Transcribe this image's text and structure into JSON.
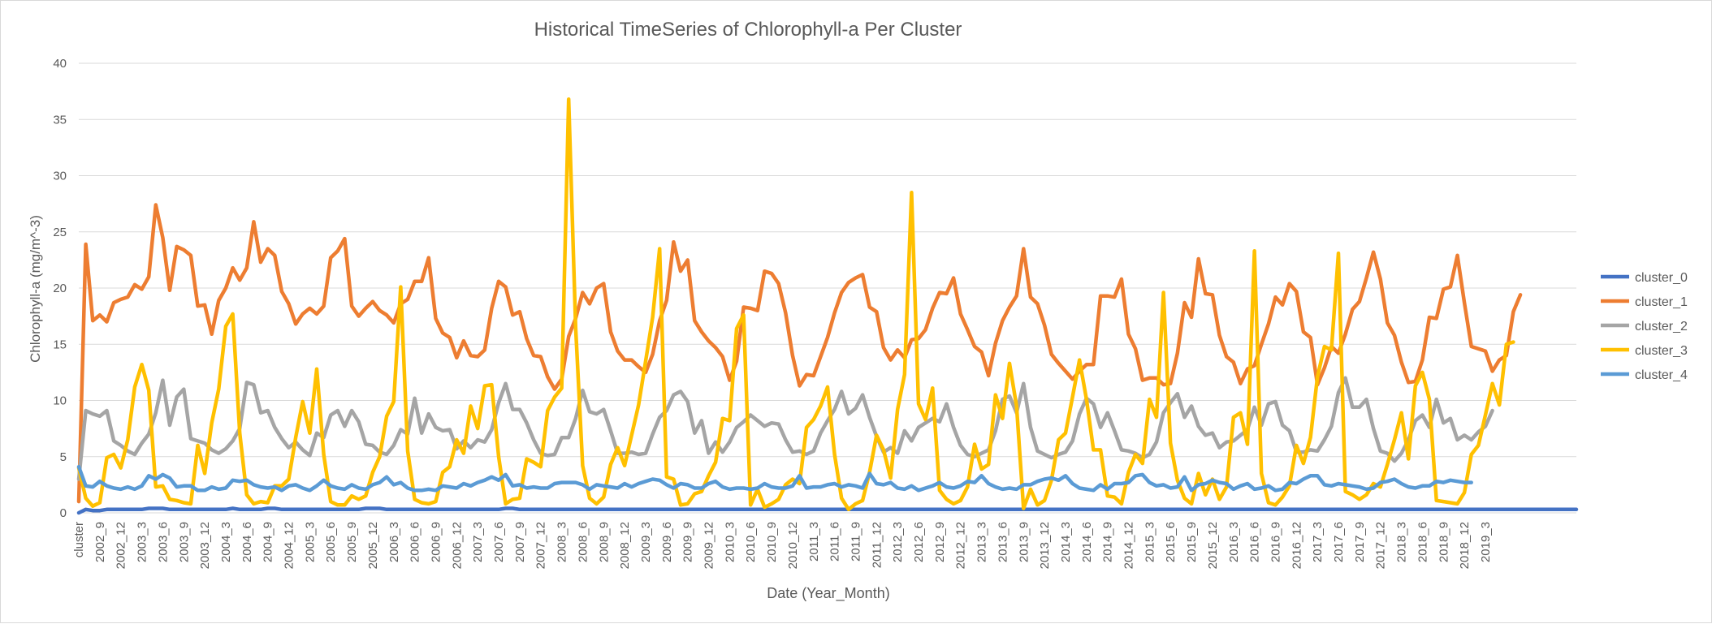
{
  "chart_data": {
    "type": "line",
    "title": "Historical TimeSeries of Chlorophyll-a Per Cluster",
    "xlabel": "Date (Year_Month)",
    "ylabel": "Chlorophyll-a (mg/m^-3)",
    "ylim": [
      0,
      40
    ],
    "yticks": [
      0,
      5,
      10,
      15,
      20,
      25,
      30,
      35,
      40
    ],
    "grid": "horizontal",
    "legend_position": "right",
    "x_tick_labels": [
      "cluster",
      "2002_9",
      "2002_12",
      "2003_3",
      "2003_6",
      "2003_9",
      "2003_12",
      "2004_3",
      "2004_6",
      "2004_9",
      "2004_12",
      "2005_3",
      "2005_6",
      "2005_9",
      "2005_12",
      "2006_3",
      "2006_6",
      "2006_9",
      "2006_12",
      "2007_3",
      "2007_6",
      "2007_9",
      "2007_12",
      "2008_3",
      "2008_6",
      "2008_9",
      "2008_12",
      "2009_3",
      "2009_6",
      "2009_9",
      "2009_12",
      "2010_3",
      "2010_6",
      "2010_9",
      "2010_12",
      "2011_3",
      "2011_6",
      "2011_9",
      "2011_12",
      "2012_3",
      "2012_6",
      "2012_9",
      "2012_12",
      "2013_3",
      "2013_6",
      "2013_9",
      "2013_12",
      "2014_3",
      "2014_6",
      "2014_9",
      "2014_12",
      "2015_3",
      "2015_6",
      "2015_9",
      "2015_12",
      "2016_3",
      "2016_6",
      "2016_9",
      "2016_12",
      "2017_3",
      "2017_6",
      "2017_9",
      "2017_12",
      "2018_3",
      "2018_6",
      "2018_9",
      "2018_12",
      "2019_3"
    ],
    "x_note": "Points are monthly from 2002_7 to 2019_5, preceded by a 'cluster' index point.",
    "series": [
      {
        "name": "cluster_0",
        "color": "#4472c4",
        "values": [
          0,
          0.3,
          0.2,
          0.2,
          0.3,
          0.3,
          0.3,
          0.3,
          0.3,
          0.3,
          0.4,
          0.4,
          0.4,
          0.3,
          0.3,
          0.3,
          0.3,
          0.3,
          0.3,
          0.3,
          0.3,
          0.3,
          0.4,
          0.3,
          0.3,
          0.3,
          0.3,
          0.4,
          0.4,
          0.3,
          0.3,
          0.3,
          0.3,
          0.3,
          0.3,
          0.3,
          0.3,
          0.3,
          0.3,
          0.3,
          0.3,
          0.4,
          0.4,
          0.4,
          0.3,
          0.3,
          0.3,
          0.3,
          0.3,
          0.3,
          0.3,
          0.3,
          0.3,
          0.3,
          0.3,
          0.3,
          0.3,
          0.3,
          0.3,
          0.3,
          0.3,
          0.4,
          0.4,
          0.3,
          0.3,
          0.3,
          0.3,
          0.3,
          0.3,
          0.3,
          0.3,
          0.3,
          0.3,
          0.3,
          0.3,
          0.3,
          0.3,
          0.3,
          0.3,
          0.3,
          0.3,
          0.3,
          0.3,
          0.3,
          0.3,
          0.3,
          0.3,
          0.3,
          0.3,
          0.3,
          0.3,
          0.3,
          0.3,
          0.3,
          0.3,
          0.3,
          0.3,
          0.3,
          0.3,
          0.3,
          0.3,
          0.3,
          0.3,
          0.3,
          0.3,
          0.3,
          0.3,
          0.3,
          0.3,
          0.3,
          0.3,
          0.3,
          0.3,
          0.3,
          0.3,
          0.3,
          0.3,
          0.3,
          0.3,
          0.3,
          0.3,
          0.3,
          0.3,
          0.3,
          0.3,
          0.3,
          0.3,
          0.3,
          0.3,
          0.3,
          0.3,
          0.3,
          0.3,
          0.3,
          0.3,
          0.3,
          0.3,
          0.3,
          0.3,
          0.3,
          0.3,
          0.3,
          0.3,
          0.3,
          0.3,
          0.3,
          0.3,
          0.3,
          0.3,
          0.3,
          0.3,
          0.3,
          0.3,
          0.3,
          0.3,
          0.3,
          0.3,
          0.3,
          0.3,
          0.3,
          0.3,
          0.3,
          0.3,
          0.3,
          0.3,
          0.3,
          0.3,
          0.3,
          0.3,
          0.3,
          0.3,
          0.3,
          0.3,
          0.3,
          0.3,
          0.3,
          0.3,
          0.3,
          0.3,
          0.3,
          0.3,
          0.3,
          0.3,
          0.3,
          0.3,
          0.3,
          0.3,
          0.3,
          0.3,
          0.3,
          0.3,
          0.3,
          0.3,
          0.3,
          0.3,
          0.3,
          0.3,
          0.3,
          0.3,
          0.3,
          0.3,
          0.3,
          0.3,
          0.3,
          0.3,
          0.3,
          0.3,
          0.3,
          0.3,
          0.3,
          0.3,
          0.3,
          0.3,
          0.3,
          0.3
        ]
      },
      {
        "name": "cluster_1",
        "color": "#ed7d31",
        "values": [
          1,
          23.9,
          17.1,
          17.6,
          17,
          18.7,
          19,
          19.2,
          20.3,
          19.9,
          21,
          27.4,
          24.5,
          19.8,
          23.7,
          23.4,
          22.9,
          18.4,
          18.5,
          15.9,
          18.9,
          20,
          21.8,
          20.7,
          21.8,
          25.9,
          22.3,
          23.5,
          22.9,
          19.7,
          18.6,
          16.8,
          17.7,
          18.2,
          17.7,
          18.4,
          22.7,
          23.3,
          24.4,
          18.4,
          17.5,
          18.2,
          18.8,
          18,
          17.6,
          16.9,
          18.6,
          19,
          20.6,
          20.6,
          22.7,
          17.3,
          16,
          15.6,
          13.8,
          15.3,
          14,
          13.9,
          14.5,
          18.2,
          20.6,
          20.1,
          17.6,
          17.9,
          15.5,
          14,
          13.9,
          12.1,
          11,
          11.9,
          15.7,
          17.3,
          19.6,
          18.6,
          20,
          20.4,
          16.1,
          14.4,
          13.6,
          13.6,
          13,
          12.5,
          14.1,
          17.1,
          18.9,
          24.1,
          21.5,
          22.5,
          17.1,
          16.1,
          15.3,
          14.7,
          13.9,
          11.8,
          13.5,
          18.3,
          18.2,
          18,
          21.5,
          21.3,
          20.4,
          17.8,
          14,
          11.3,
          12.3,
          12.2,
          13.9,
          15.6,
          17.8,
          19.6,
          20.5,
          20.9,
          21.2,
          18.3,
          17.9,
          14.7,
          13.6,
          14.5,
          13.8,
          15.4,
          15.5,
          16.3,
          18.2,
          19.6,
          19.5,
          20.9,
          17.7,
          16.3,
          14.8,
          14.3,
          12.2,
          15.1,
          17.1,
          18.3,
          19.3,
          23.5,
          19.2,
          18.6,
          16.7,
          14.1,
          13.3,
          12.6,
          11.9,
          12.6,
          13.2,
          13.2,
          19.3,
          19.3,
          19.2,
          20.8,
          15.9,
          14.6,
          11.8,
          12,
          12,
          11.4,
          11.5,
          14.2,
          18.7,
          17.4,
          22.6,
          19.5,
          19.4,
          15.8,
          13.9,
          13.4,
          11.5,
          12.8,
          13.1,
          15,
          16.8,
          19.2,
          18.5,
          20.4,
          19.7,
          16.1,
          15.6,
          11.4,
          12.9,
          14.8,
          14.2,
          15.9,
          18.1,
          18.8,
          20.9,
          23.2,
          20.8,
          16.9,
          15.8,
          13.4,
          11.6,
          11.7,
          13.6,
          17.4,
          17.3,
          19.9,
          20.1,
          22.9,
          18.7,
          14.8,
          14.6,
          14.4,
          12.6,
          13.6,
          14,
          17.9,
          19.4
        ]
      },
      {
        "name": "cluster_2",
        "color": "#a5a5a5",
        "values": [
          3,
          9.1,
          8.8,
          8.6,
          9.1,
          6.4,
          6,
          5.5,
          5.2,
          6.2,
          7,
          8.9,
          11.8,
          7.8,
          10.3,
          11,
          6.6,
          6.4,
          6.2,
          5.6,
          5.3,
          5.7,
          6.4,
          7.5,
          11.6,
          11.4,
          8.9,
          9.1,
          7.6,
          6.6,
          5.8,
          6.3,
          5.6,
          5.1,
          7.1,
          6.7,
          8.7,
          9.1,
          7.7,
          9.1,
          8.1,
          6.1,
          6,
          5.4,
          5.2,
          6,
          7.4,
          7,
          10.2,
          7.1,
          8.8,
          7.6,
          7.3,
          7.4,
          5.7,
          6.4,
          5.8,
          6.5,
          6.3,
          7.4,
          9.8,
          11.5,
          9.2,
          9.2,
          8,
          6.5,
          5.3,
          5.1,
          5.2,
          6.7,
          6.7,
          8.4,
          10.9,
          9,
          8.8,
          9.2,
          7.3,
          5.3,
          5.3,
          5.4,
          5.2,
          5.3,
          7,
          8.5,
          9.1,
          10.5,
          10.8,
          9.9,
          7.1,
          8.2,
          5.3,
          6.3,
          5.4,
          6.3,
          7.6,
          8.1,
          8.7,
          8.2,
          7.7,
          8,
          7.9,
          6.5,
          5.4,
          5.5,
          5.2,
          5.5,
          7.1,
          8.2,
          9.2,
          10.8,
          8.8,
          9.3,
          10.5,
          8.5,
          6.8,
          5.4,
          5.8,
          5.3,
          7.3,
          6.4,
          7.6,
          8,
          8.4,
          8.1,
          9.7,
          7.6,
          6,
          5.2,
          5,
          5.3,
          5.6,
          7.3,
          10.1,
          10.4,
          8.9,
          11.5,
          7.6,
          5.5,
          5.2,
          4.9,
          5.2,
          5.4,
          6.4,
          8.8,
          10.2,
          9.7,
          7.6,
          8.9,
          7.3,
          5.6,
          5.5,
          5.3,
          4.9,
          5.2,
          6.3,
          8.9,
          9.8,
          10.6,
          8.5,
          9.5,
          7.7,
          6.9,
          7.1,
          5.8,
          6.3,
          6.4,
          6.9,
          7.4,
          9.4,
          7.8,
          9.7,
          9.9,
          7.8,
          7.3,
          5.4,
          5.4,
          5.6,
          5.5,
          6.5,
          7.7,
          10.7,
          12,
          9.4,
          9.4,
          10.1,
          7.5,
          5.5,
          5.3,
          4.6,
          5.3,
          6.5,
          8.2,
          8.7,
          7.6,
          10.1,
          8,
          8.4,
          6.5,
          6.9,
          6.5,
          7.2,
          7.7,
          9.1
        ]
      },
      {
        "name": "cluster_3",
        "color": "#ffc000",
        "values": [
          4,
          1.3,
          0.6,
          0.9,
          4.9,
          5.2,
          4,
          6.5,
          11.2,
          13.2,
          10.9,
          2.3,
          2.4,
          1.2,
          1.1,
          0.9,
          0.8,
          6,
          3.5,
          8,
          11,
          16.6,
          17.7,
          7.1,
          1.6,
          0.8,
          1,
          0.9,
          2.4,
          2.4,
          3,
          6.7,
          9.9,
          7.1,
          12.8,
          5.2,
          1,
          0.7,
          0.7,
          1.5,
          1.2,
          1.5,
          3.6,
          5,
          8.6,
          9.9,
          20.1,
          5.5,
          1.2,
          0.9,
          0.8,
          1,
          3.6,
          4.1,
          6.5,
          5.3,
          9.5,
          7.5,
          11.3,
          11.4,
          5,
          0.8,
          1.2,
          1.3,
          4.8,
          4.5,
          4.1,
          9.1,
          10.3,
          11.1,
          36.8,
          16.5,
          4.2,
          1.3,
          0.8,
          1.4,
          4.3,
          5.8,
          4.2,
          6.9,
          9.6,
          13.5,
          17.4,
          23.5,
          3.2,
          3,
          0.7,
          0.8,
          1.7,
          1.9,
          3.3,
          4.5,
          8.4,
          8.2,
          16.4,
          17.6,
          0.7,
          2.1,
          0.5,
          0.8,
          1.2,
          2.5,
          3,
          2.6,
          7.6,
          8.3,
          9.5,
          11.2,
          5.2,
          1.3,
          0.3,
          0.8,
          1.1,
          3.6,
          6.9,
          5.6,
          3.1,
          9.2,
          12.3,
          28.5,
          9.7,
          8.3,
          11.1,
          2,
          1.2,
          0.8,
          1.1,
          2.3,
          6.1,
          3.9,
          4.3,
          10.5,
          8.4,
          13.3,
          9.5,
          0.4,
          2.1,
          0.7,
          1.1,
          2.9,
          6.5,
          7.1,
          10.3,
          13.6,
          10.1,
          5.6,
          5.6,
          1.5,
          1.4,
          0.8,
          3.6,
          5.2,
          4.4,
          10.1,
          8.5,
          19.6,
          6.2,
          2.9,
          1.3,
          0.8,
          3.5,
          1.6,
          3,
          1.2,
          2.3,
          8.5,
          8.9,
          6.1,
          23.3,
          3.5,
          0.9,
          0.7,
          1.4,
          2.4,
          6,
          4.4,
          6.7,
          12.1,
          14.8,
          14.5,
          23.1,
          1.9,
          1.6,
          1.2,
          1.6,
          2.6,
          2.3,
          4.3,
          6.5,
          8.9,
          4.8,
          11.3,
          12.5,
          10.1,
          1.1,
          1,
          0.9,
          0.8,
          1.8,
          5.2,
          6,
          8.7,
          11.5,
          9.6,
          15,
          15.2
        ]
      },
      {
        "name": "cluster_4",
        "color": "#5b9bd5",
        "values": [
          4.1,
          2.4,
          2.3,
          2.8,
          2.4,
          2.2,
          2.1,
          2.3,
          2.1,
          2.4,
          3.3,
          3,
          3.4,
          3.1,
          2.3,
          2.4,
          2.4,
          2,
          2,
          2.3,
          2.1,
          2.2,
          2.9,
          2.8,
          2.9,
          2.5,
          2.3,
          2.2,
          2.3,
          2,
          2.4,
          2.5,
          2.2,
          2,
          2.4,
          2.9,
          2.4,
          2.2,
          2.1,
          2.5,
          2.2,
          2.1,
          2.5,
          2.7,
          3.2,
          2.5,
          2.7,
          2.2,
          2,
          2,
          2.1,
          2,
          2.4,
          2.3,
          2.2,
          2.6,
          2.4,
          2.7,
          2.9,
          3.2,
          2.9,
          3.4,
          2.4,
          2.5,
          2.2,
          2.3,
          2.2,
          2.2,
          2.6,
          2.7,
          2.7,
          2.7,
          2.5,
          2.1,
          2.5,
          2.4,
          2.3,
          2.2,
          2.6,
          2.3,
          2.6,
          2.8,
          3,
          2.9,
          2.5,
          2.2,
          2.6,
          2.5,
          2.2,
          2.2,
          2.6,
          2.8,
          2.3,
          2.1,
          2.2,
          2.2,
          2.1,
          2.2,
          2.6,
          2.3,
          2.2,
          2.2,
          2.4,
          3.3,
          2.2,
          2.3,
          2.3,
          2.5,
          2.6,
          2.3,
          2.5,
          2.4,
          2.2,
          3.5,
          2.6,
          2.5,
          2.7,
          2.2,
          2.1,
          2.4,
          2,
          2.2,
          2.4,
          2.7,
          2.3,
          2.2,
          2.4,
          2.8,
          2.7,
          3.3,
          2.6,
          2.3,
          2.1,
          2.2,
          2.1,
          2.5,
          2.5,
          2.8,
          3,
          3.1,
          2.9,
          3.3,
          2.6,
          2.2,
          2.1,
          2,
          2.5,
          2.1,
          2.6,
          2.6,
          2.7,
          3.3,
          3.4,
          2.7,
          2.4,
          2.5,
          2.2,
          2.3,
          3.2,
          2,
          2.5,
          2.6,
          2.9,
          2.7,
          2.6,
          2.1,
          2.4,
          2.6,
          2.1,
          2.2,
          2.4,
          2,
          2.1,
          2.7,
          2.6,
          3,
          3.3,
          3.3,
          2.5,
          2.4,
          2.6,
          2.5,
          2.4,
          2.3,
          2.1,
          2.2,
          2.7,
          2.8,
          3,
          2.6,
          2.3,
          2.2,
          2.4,
          2.4,
          2.8,
          2.7,
          2.9,
          2.8,
          2.7,
          2.7
        ]
      }
    ]
  }
}
